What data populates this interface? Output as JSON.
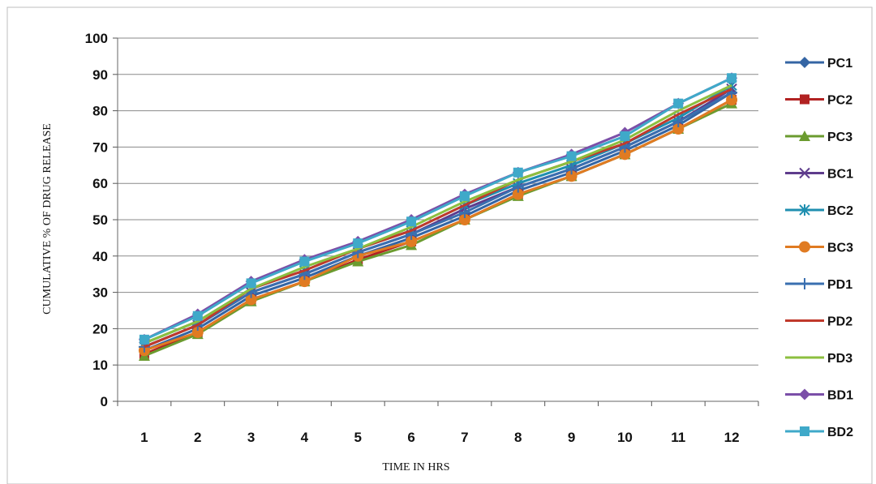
{
  "chart_data": {
    "type": "line",
    "title": "",
    "xlabel": "TIME IN HRS",
    "ylabel": "CUMULATIVE  % OF DRUG RELEASE",
    "ylim": [
      0,
      100
    ],
    "yticks": [
      0,
      10,
      20,
      30,
      40,
      50,
      60,
      70,
      80,
      90,
      100
    ],
    "categories": [
      "1",
      "2",
      "3",
      "4",
      "5",
      "6",
      "7",
      "8",
      "9",
      "10",
      "11",
      "12"
    ],
    "grid": "horizontal",
    "legend_position": "right",
    "series": [
      {
        "name": "PC1",
        "color": "#3465a4",
        "marker": "diamond",
        "values": [
          14,
          20,
          29,
          34,
          40,
          45,
          51,
          58,
          63,
          69,
          76,
          85
        ]
      },
      {
        "name": "PC2",
        "color": "#b22222",
        "marker": "square",
        "values": [
          13,
          19,
          28,
          33,
          39,
          44,
          50,
          57,
          62,
          68,
          75,
          83
        ]
      },
      {
        "name": "PC3",
        "color": "#6b9b2f",
        "marker": "triangle",
        "values": [
          12.5,
          18.5,
          27.5,
          33,
          38.5,
          43,
          50,
          56.5,
          62,
          68,
          75,
          82
        ]
      },
      {
        "name": "BC1",
        "color": "#5e3c8c",
        "marker": "x",
        "values": [
          15,
          21,
          30,
          35,
          41,
          46,
          53,
          59,
          64,
          70,
          77,
          86
        ]
      },
      {
        "name": "BC2",
        "color": "#1f8fb0",
        "marker": "star",
        "values": [
          16,
          22,
          31,
          36,
          42,
          47,
          54,
          60,
          65,
          71,
          78,
          87
        ]
      },
      {
        "name": "BC3",
        "color": "#e07b22",
        "marker": "circle",
        "values": [
          14,
          19,
          28,
          33,
          40,
          44,
          50,
          57,
          62,
          68,
          75,
          83
        ]
      },
      {
        "name": "PD1",
        "color": "#3a6fb0",
        "marker": "plus",
        "values": [
          15,
          21,
          30,
          35,
          41,
          46,
          52,
          59,
          64,
          70,
          77,
          85
        ]
      },
      {
        "name": "PD2",
        "color": "#c0392b",
        "marker": "none",
        "values": [
          15,
          21,
          31,
          36,
          42,
          47,
          54,
          61,
          66,
          71,
          79,
          86
        ]
      },
      {
        "name": "PD3",
        "color": "#8cbf3f",
        "marker": "none",
        "values": [
          16,
          22,
          31,
          37,
          42,
          48,
          55,
          61,
          66,
          72,
          80,
          87
        ]
      },
      {
        "name": "BD1",
        "color": "#7b4fa8",
        "marker": "diamond",
        "values": [
          17,
          24,
          33,
          39,
          44,
          50,
          57,
          63,
          68,
          74,
          82,
          89
        ]
      },
      {
        "name": "BD2",
        "color": "#3fa9c9",
        "marker": "square",
        "values": [
          17,
          23.5,
          32.5,
          38.5,
          43.5,
          49.5,
          56.5,
          63,
          67.5,
          73,
          82,
          89
        ]
      }
    ]
  }
}
